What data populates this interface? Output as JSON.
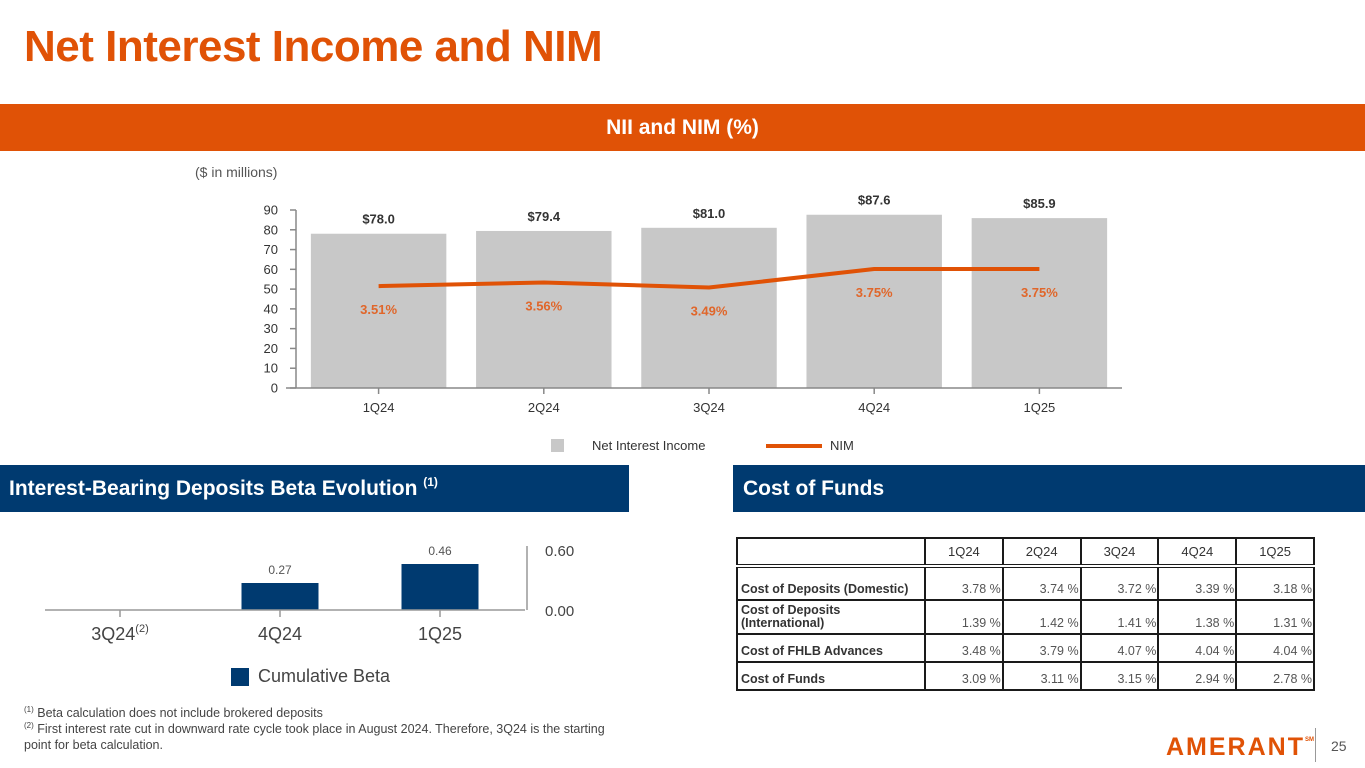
{
  "page": {
    "title": "Net Interest Income and NIM",
    "page_number": "25",
    "logo_text": "AMERANT",
    "logo_mark": "SM"
  },
  "nii_section": {
    "banner": "NII and NIM (%)",
    "units_note": "($ in millions)",
    "legend": {
      "bars": "Net Interest Income",
      "line": "NIM"
    }
  },
  "beta_section": {
    "banner": "Interest-Bearing Deposits Beta Evolution",
    "banner_sup": "(1)",
    "legend": "Cumulative Beta",
    "first_category_sup": "(2)"
  },
  "cof_section": {
    "banner": "Cost of Funds",
    "columns": [
      "1Q24",
      "2Q24",
      "3Q24",
      "4Q24",
      "1Q25"
    ],
    "rows": [
      {
        "label": "Cost of Deposits (Domestic)",
        "values": [
          "3.78 %",
          "3.74 %",
          "3.72 %",
          "3.39 %",
          "3.18 %"
        ]
      },
      {
        "label": "Cost of Deposits (International)",
        "values": [
          "1.39 %",
          "1.42 %",
          "1.41 %",
          "1.38 %",
          "1.31 %"
        ]
      },
      {
        "label": "Cost of FHLB Advances",
        "values": [
          "3.48 %",
          "3.79 %",
          "4.07 %",
          "4.04 %",
          "4.04 %"
        ]
      },
      {
        "label": "Cost of Funds",
        "values": [
          "3.09 %",
          "3.11 %",
          "3.15 %",
          "2.94 %",
          "2.78 %"
        ]
      }
    ]
  },
  "footnotes": {
    "note1_mark": "(1)",
    "note1": "Beta calculation does not include brokered deposits",
    "note2_mark": "(2)",
    "note2": "First interest rate cut in downward rate cycle took place in August 2024. Therefore, 3Q24 is the starting point for beta calculation."
  },
  "colors": {
    "orange": "#e05206",
    "navy": "#003a70",
    "bar_gray": "#c8c8c8"
  },
  "chart_data": [
    {
      "type": "bar",
      "title": "NII and NIM (%)",
      "xlabel": "",
      "ylabel": "($ in millions)",
      "categories": [
        "1Q24",
        "2Q24",
        "3Q24",
        "4Q24",
        "1Q25"
      ],
      "ylim": [
        0,
        90
      ],
      "yticks": [
        0,
        10,
        20,
        30,
        40,
        50,
        60,
        70,
        80,
        90
      ],
      "series": [
        {
          "name": "Net Interest Income",
          "type": "bar",
          "values": [
            78.0,
            79.4,
            81.0,
            87.6,
            85.9
          ],
          "labels": [
            "$78.0",
            "$79.4",
            "$81.0",
            "$87.6",
            "$85.9"
          ]
        },
        {
          "name": "NIM",
          "type": "line",
          "values": [
            3.51,
            3.56,
            3.49,
            3.75,
            3.75
          ],
          "labels": [
            "3.51%",
            "3.56%",
            "3.49%",
            "3.75%",
            "3.75%"
          ],
          "secondary_axis_range": [
            2.5,
            4.0
          ]
        }
      ],
      "legend": "bottom",
      "grid": false
    },
    {
      "type": "bar",
      "title": "Interest-Bearing Deposits Beta Evolution",
      "categories": [
        "3Q24",
        "4Q24",
        "1Q25"
      ],
      "series": [
        {
          "name": "Cumulative Beta",
          "values": [
            0,
            0.27,
            0.46
          ],
          "labels": [
            "",
            "0.27",
            "0.46"
          ]
        }
      ],
      "ylim": [
        0,
        0.6
      ],
      "yticks": [
        "0.00",
        "0.60"
      ],
      "yaxis_side": "right",
      "legend": "bottom",
      "grid": false
    }
  ]
}
